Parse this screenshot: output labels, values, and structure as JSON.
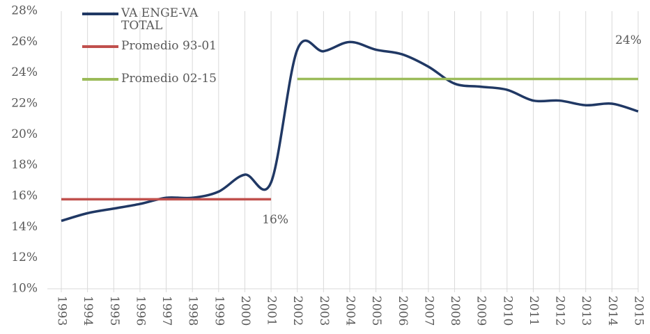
{
  "chart_data": {
    "type": "line",
    "categories": [
      "1993",
      "1994",
      "1995",
      "1996",
      "1997",
      "1998",
      "1999",
      "2000",
      "2001",
      "2002",
      "2003",
      "2004",
      "2005",
      "2006",
      "2007",
      "2008",
      "2009",
      "2010",
      "2011",
      "2012",
      "2013",
      "2014",
      "2015"
    ],
    "series": [
      {
        "name": "VA ENGE-VA TOTAL",
        "color": "#203864",
        "smooth": true,
        "values": [
          14.4,
          14.9,
          15.2,
          15.5,
          15.9,
          15.9,
          16.3,
          17.4,
          16.9,
          25.5,
          25.4,
          26.0,
          25.5,
          25.2,
          24.4,
          23.3,
          23.1,
          22.9,
          22.2,
          22.2,
          21.9,
          22.0,
          21.5
        ]
      },
      {
        "name": "Promedio 93-01",
        "color": "#c0504d",
        "smooth": false,
        "values": [
          15.8,
          15.8,
          15.8,
          15.8,
          15.8,
          15.8,
          15.8,
          15.8,
          15.8,
          null,
          null,
          null,
          null,
          null,
          null,
          null,
          null,
          null,
          null,
          null,
          null,
          null,
          null
        ],
        "value_labels": [
          null,
          null,
          null,
          null,
          null,
          null,
          null,
          null,
          "16%",
          null,
          null,
          null,
          null,
          null,
          null,
          null,
          null,
          null,
          null,
          null,
          null,
          null,
          null
        ]
      },
      {
        "name": "Promedio 02-15",
        "color": "#9bbb59",
        "smooth": false,
        "values": [
          null,
          null,
          null,
          null,
          null,
          null,
          null,
          null,
          null,
          23.6,
          23.6,
          23.6,
          23.6,
          23.6,
          23.6,
          23.6,
          23.6,
          23.6,
          23.6,
          23.6,
          23.6,
          23.6,
          23.6
        ],
        "value_labels": [
          null,
          null,
          null,
          null,
          null,
          null,
          null,
          null,
          null,
          null,
          null,
          null,
          null,
          null,
          null,
          null,
          null,
          null,
          null,
          null,
          null,
          null,
          "24%"
        ]
      }
    ],
    "ylim": [
      10,
      28
    ],
    "yticks": [
      {
        "value": 10,
        "label": "10%"
      },
      {
        "value": 12,
        "label": "12%"
      },
      {
        "value": 14,
        "label": "14%"
      },
      {
        "value": 16,
        "label": "16%"
      },
      {
        "value": 18,
        "label": "18%"
      },
      {
        "value": 20,
        "label": "20%"
      },
      {
        "value": 22,
        "label": "22%"
      },
      {
        "value": 24,
        "label": "24%"
      },
      {
        "value": 26,
        "label": "26%"
      },
      {
        "value": 28,
        "label": "28%"
      }
    ],
    "grid": true,
    "legend": "top-left"
  }
}
